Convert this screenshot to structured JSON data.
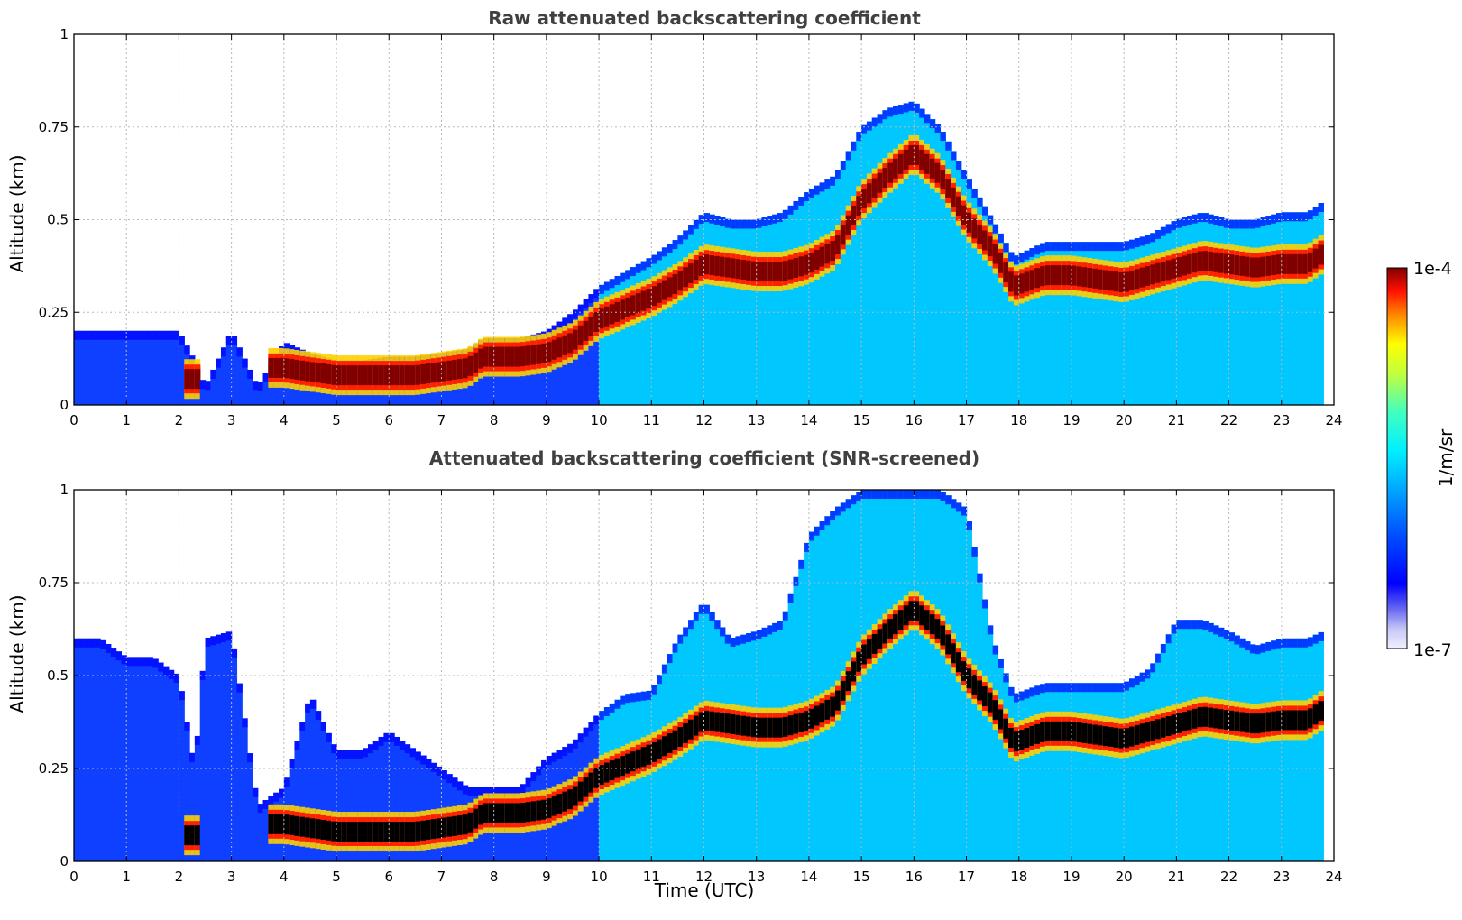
{
  "chart_data": [
    {
      "type": "heatmap",
      "title": "Raw attenuated backscattering coefficient",
      "xlabel": "",
      "ylabel": "Altitude (km)",
      "xlim": [
        0,
        24
      ],
      "ylim": [
        0,
        1
      ],
      "x_ticks": [
        "0",
        "1",
        "2",
        "3",
        "4",
        "5",
        "6",
        "7",
        "8",
        "9",
        "10",
        "11",
        "12",
        "13",
        "14",
        "15",
        "16",
        "17",
        "18",
        "19",
        "20",
        "21",
        "22",
        "23",
        "24"
      ],
      "y_ticks": [
        "0",
        "0.25",
        "0.5",
        "0.75",
        "1"
      ],
      "grid": true,
      "x": [
        0,
        0.5,
        1,
        1.5,
        2,
        2.3,
        2.5,
        3,
        3.5,
        4,
        4.5,
        5,
        5.5,
        6,
        6.5,
        7,
        7.5,
        7.8,
        8.5,
        9,
        9.5,
        10,
        10.5,
        11,
        11.5,
        12,
        12.5,
        13,
        13.5,
        14,
        14.5,
        15,
        15.5,
        16,
        16.5,
        17,
        17.5,
        17.9,
        18.5,
        19,
        19.5,
        20,
        20.5,
        21,
        21.5,
        22,
        22.5,
        23,
        23.5,
        23.8
      ],
      "layer_top_km": [
        0.2,
        0.2,
        0.2,
        0.2,
        0.2,
        0.12,
        0.05,
        0.2,
        0.05,
        0.17,
        0.14,
        0.12,
        0.12,
        0.13,
        0.13,
        0.14,
        0.15,
        0.18,
        0.18,
        0.2,
        0.25,
        0.32,
        0.36,
        0.4,
        0.45,
        0.52,
        0.5,
        0.5,
        0.52,
        0.58,
        0.62,
        0.75,
        0.8,
        0.82,
        0.75,
        0.62,
        0.5,
        0.4,
        0.44,
        0.44,
        0.44,
        0.44,
        0.46,
        0.5,
        0.52,
        0.5,
        0.5,
        0.52,
        0.52,
        0.55
      ],
      "layer_center_km": [
        null,
        null,
        null,
        null,
        null,
        0.07,
        null,
        null,
        null,
        0.1,
        0.09,
        0.08,
        0.08,
        0.08,
        0.08,
        0.09,
        0.1,
        0.13,
        0.13,
        0.14,
        0.17,
        0.23,
        0.26,
        0.29,
        0.33,
        0.38,
        0.37,
        0.36,
        0.36,
        0.38,
        0.42,
        0.55,
        0.62,
        0.68,
        0.62,
        0.5,
        0.42,
        0.32,
        0.35,
        0.35,
        0.34,
        0.33,
        0.35,
        0.37,
        0.39,
        0.38,
        0.37,
        0.38,
        0.38,
        0.41
      ],
      "colorscale": "jet",
      "colorbar_label": "1/m/sr",
      "colorbar_range": [
        "1e-7",
        "1e-4"
      ]
    },
    {
      "type": "heatmap",
      "title": "Attenuated backscattering coefficient (SNR-screened)",
      "xlabel": "Time (UTC)",
      "ylabel": "Altitude (km)",
      "xlim": [
        0,
        24
      ],
      "ylim": [
        0,
        1
      ],
      "x_ticks": [
        "0",
        "1",
        "2",
        "3",
        "4",
        "5",
        "6",
        "7",
        "8",
        "9",
        "10",
        "11",
        "12",
        "13",
        "14",
        "15",
        "16",
        "17",
        "18",
        "19",
        "20",
        "21",
        "22",
        "23",
        "24"
      ],
      "y_ticks": [
        "0",
        "0.25",
        "0.5",
        "0.75",
        "1"
      ],
      "grid": true,
      "x": [
        0,
        0.5,
        1,
        1.5,
        2,
        2.3,
        2.5,
        3,
        3.5,
        4,
        4.5,
        5,
        5.5,
        6,
        6.5,
        7,
        7.5,
        7.8,
        8.5,
        9,
        9.5,
        10,
        10.5,
        11,
        11.5,
        12,
        12.5,
        13,
        13.5,
        14,
        14.5,
        15,
        15.5,
        16,
        16.5,
        17,
        17.5,
        17.9,
        18.5,
        19,
        19.5,
        20,
        20.5,
        21,
        21.5,
        22,
        22.5,
        23,
        23.5,
        23.8
      ],
      "layer_top_km": [
        0.6,
        0.6,
        0.55,
        0.55,
        0.5,
        0.25,
        0.6,
        0.62,
        0.15,
        0.2,
        0.45,
        0.3,
        0.3,
        0.35,
        0.3,
        0.25,
        0.2,
        0.2,
        0.2,
        0.28,
        0.32,
        0.4,
        0.45,
        0.46,
        0.6,
        0.7,
        0.6,
        0.62,
        0.65,
        0.88,
        0.95,
        1.0,
        1.0,
        1.0,
        1.0,
        0.95,
        0.6,
        0.45,
        0.48,
        0.48,
        0.48,
        0.48,
        0.52,
        0.65,
        0.65,
        0.62,
        0.58,
        0.6,
        0.6,
        0.62
      ],
      "layer_center_km": [
        null,
        null,
        null,
        null,
        null,
        0.07,
        null,
        null,
        null,
        0.1,
        0.09,
        0.08,
        0.08,
        0.08,
        0.08,
        0.09,
        0.1,
        0.13,
        0.13,
        0.14,
        0.17,
        0.23,
        0.26,
        0.29,
        0.33,
        0.38,
        0.37,
        0.36,
        0.36,
        0.38,
        0.42,
        0.55,
        0.62,
        0.68,
        0.62,
        0.5,
        0.42,
        0.32,
        0.35,
        0.35,
        0.34,
        0.33,
        0.35,
        0.37,
        0.39,
        0.38,
        0.37,
        0.38,
        0.38,
        0.41
      ],
      "colorscale": "jet",
      "colorbar_label": "1/m/sr",
      "colorbar_range": [
        "1e-7",
        "1e-4"
      ]
    }
  ]
}
